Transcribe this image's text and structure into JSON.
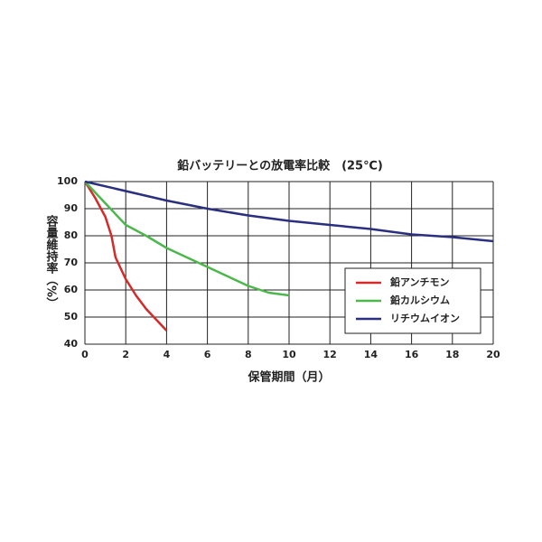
{
  "chart_data": {
    "type": "line",
    "title": "鉛バッテリーとの放電率比較　(25℃)",
    "x_label": "保管期間（月）",
    "y_label": "容量維持率（%）",
    "xlim": [
      0,
      20
    ],
    "xticks": [
      0,
      2,
      4,
      6,
      8,
      10,
      12,
      14,
      16,
      18,
      20
    ],
    "ylim": [
      40,
      100
    ],
    "yticks": [
      40,
      50,
      60,
      70,
      80,
      90,
      100
    ],
    "grid": true,
    "legend": "lower right",
    "series": [
      {
        "name": "鉛アンチモン",
        "color": "#d42a2a",
        "x": [
          0,
          0.5,
          1,
          1.3,
          1.5,
          2,
          2.5,
          3,
          3.5,
          4
        ],
        "values": [
          100,
          94,
          87,
          80,
          72,
          64,
          58,
          53,
          49,
          45
        ]
      },
      {
        "name": "鉛カルシウム",
        "color": "#4cb84c",
        "x": [
          0,
          1,
          2,
          3,
          4,
          5,
          6,
          7,
          8,
          9,
          10
        ],
        "values": [
          100,
          92,
          84,
          80,
          75.5,
          72,
          68.5,
          65,
          61.5,
          59,
          58
        ]
      },
      {
        "name": "リチウムイオン",
        "color": "#2b2f80",
        "x": [
          0,
          2,
          4,
          6,
          8,
          10,
          12,
          14,
          16,
          18,
          20
        ],
        "values": [
          100,
          96.5,
          93,
          90,
          87.5,
          85.5,
          84,
          82.5,
          80.5,
          79.5,
          78
        ]
      }
    ]
  }
}
